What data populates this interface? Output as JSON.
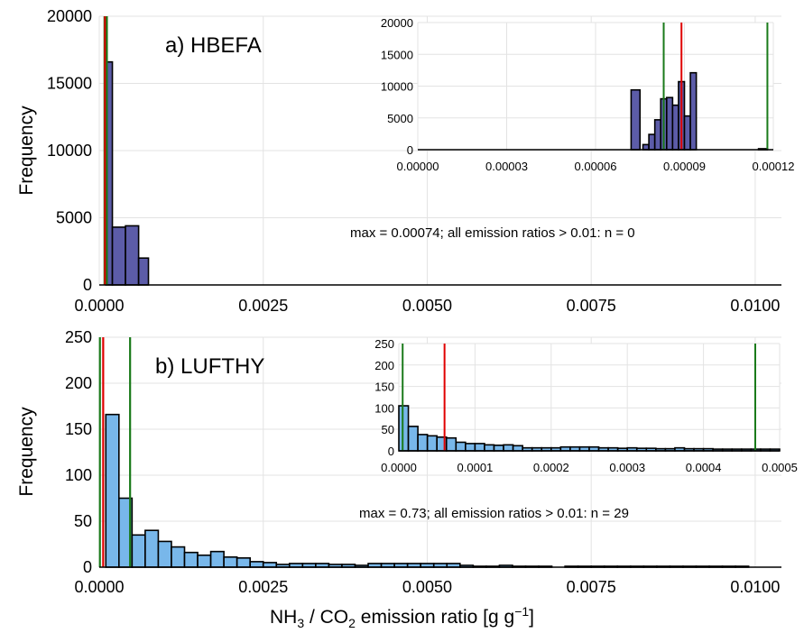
{
  "chart_data": [
    {
      "id": "a",
      "type": "bar",
      "title": "a) HBEFA",
      "ylabel": "Frequency",
      "xlim": [
        0,
        0.0104
      ],
      "ylim": [
        0,
        20000
      ],
      "xticks": [
        0,
        0.0025,
        0.005,
        0.0075,
        0.01
      ],
      "xtick_labels": [
        "0.0000",
        "0.0025",
        "0.0050",
        "0.0075",
        "0.0100"
      ],
      "yticks": [
        0,
        5000,
        10000,
        15000,
        20000
      ],
      "ytick_labels": [
        "0",
        "5000",
        "10000",
        "15000",
        "20000"
      ],
      "bar_color": "#5c5ca8",
      "bins": [
        [
          0.0001,
          0.0002,
          16600
        ],
        [
          0.0002,
          0.0004,
          4300
        ],
        [
          0.0004,
          0.0006,
          4400
        ],
        [
          0.0006,
          0.00075,
          2000
        ]
      ],
      "vlines": [
        {
          "x": 8e-05,
          "color": "#1a7a1a"
        },
        {
          "x": 8.8e-05,
          "color": "#e00000"
        },
        {
          "x": 0.000116,
          "color": "#1a7a1a"
        }
      ],
      "annotation": "max = 0.00074; all emission ratios > 0.01: n = 0",
      "inset": {
        "xlim": [
          0,
          0.00012
        ],
        "ylim": [
          0,
          20000
        ],
        "xticks": [
          0,
          3e-05,
          6e-05,
          9e-05,
          0.00012
        ],
        "xtick_labels": [
          "0.00000",
          "0.00003",
          "0.00006",
          "0.00009",
          "0.00012"
        ],
        "yticks": [
          0,
          5000,
          10000,
          15000,
          20000
        ],
        "ytick_labels": [
          "0",
          "5000",
          "10000",
          "15000",
          "20000"
        ],
        "bins": [
          [
            7.2e-05,
            7.5e-05,
            9400
          ],
          [
            7.6e-05,
            7.8e-05,
            800
          ],
          [
            7.8e-05,
            8e-05,
            2400
          ],
          [
            8e-05,
            8.2e-05,
            4700
          ],
          [
            8.2e-05,
            8.4e-05,
            8000
          ],
          [
            8.4e-05,
            8.6e-05,
            8200
          ],
          [
            8.6e-05,
            8.8e-05,
            7000
          ],
          [
            8.8e-05,
            9e-05,
            10700
          ],
          [
            9e-05,
            9.2e-05,
            5300
          ],
          [
            9.2e-05,
            9.4e-05,
            12100
          ],
          [
            0.000115,
            0.000118,
            150
          ]
        ],
        "vlines": [
          {
            "x": 8.3e-05,
            "color": "#1a7a1a"
          },
          {
            "x": 8.9e-05,
            "color": "#e00000"
          },
          {
            "x": 0.000118,
            "color": "#1a7a1a"
          }
        ]
      }
    },
    {
      "id": "b",
      "type": "bar",
      "title": "b) LUFTHY",
      "ylabel": "Frequency",
      "xlim": [
        0,
        0.0104
      ],
      "ylim": [
        0,
        250
      ],
      "xticks": [
        0,
        0.0025,
        0.005,
        0.0075,
        0.01
      ],
      "xtick_labels": [
        "0.0000",
        "0.0025",
        "0.0050",
        "0.0075",
        "0.0100"
      ],
      "yticks": [
        0,
        50,
        100,
        150,
        200,
        250
      ],
      "ytick_labels": [
        "0",
        "50",
        "100",
        "150",
        "200",
        "250"
      ],
      "bar_color": "#78b7ea",
      "bin_width": 0.0002,
      "bin_start": 0.0001,
      "counts": [
        166,
        75,
        35,
        40,
        28,
        22,
        16,
        13,
        17,
        11,
        10,
        6,
        5,
        3,
        4,
        4,
        4,
        3,
        3,
        2,
        4,
        4,
        4,
        4,
        4,
        4,
        4,
        2,
        1,
        1,
        2,
        1,
        1,
        1,
        0,
        1,
        1,
        1,
        1,
        1,
        1,
        1,
        1,
        1,
        1,
        1,
        1,
        1,
        1
      ],
      "vlines": [
        {
          "x": 1e-05,
          "color": "#1a7a1a"
        },
        {
          "x": 6e-05,
          "color": "#e00000"
        },
        {
          "x": 0.00047,
          "color": "#1a7a1a"
        }
      ],
      "annotation": "max = 0.73; all emission ratios > 0.01: n = 29",
      "inset": {
        "xlim": [
          0,
          0.0005
        ],
        "ylim": [
          0,
          250
        ],
        "xticks": [
          0,
          0.0001,
          0.0002,
          0.0003,
          0.0004,
          0.0005
        ],
        "xtick_labels": [
          "0.0000",
          "0.0001",
          "0.0002",
          "0.0003",
          "0.0004",
          "0.0005"
        ],
        "yticks": [
          0,
          50,
          100,
          150,
          200,
          250
        ],
        "ytick_labels": [
          "0",
          "50",
          "100",
          "150",
          "200",
          "250"
        ],
        "bin_width": 1.25e-05,
        "bin_start": 0,
        "counts": [
          105,
          57,
          38,
          35,
          32,
          30,
          20,
          17,
          17,
          14,
          13,
          14,
          12,
          7,
          7,
          7,
          7,
          9,
          9,
          9,
          9,
          7,
          7,
          6,
          7,
          6,
          6,
          5,
          5,
          7,
          5,
          5,
          5,
          4,
          4,
          4,
          4,
          4,
          4,
          4
        ],
        "vlines": [
          {
            "x": 5e-06,
            "color": "#1a7a1a"
          },
          {
            "x": 6e-05,
            "color": "#e00000"
          },
          {
            "x": 0.000468,
            "color": "#1a7a1a"
          }
        ]
      }
    }
  ],
  "shared_xlabel": {
    "prefix": "NH",
    "sub1": "3",
    "mid": " / CO",
    "sub2": "2",
    "suffix": " emission ratio [g g",
    "sup": "−1",
    "end": "]"
  }
}
